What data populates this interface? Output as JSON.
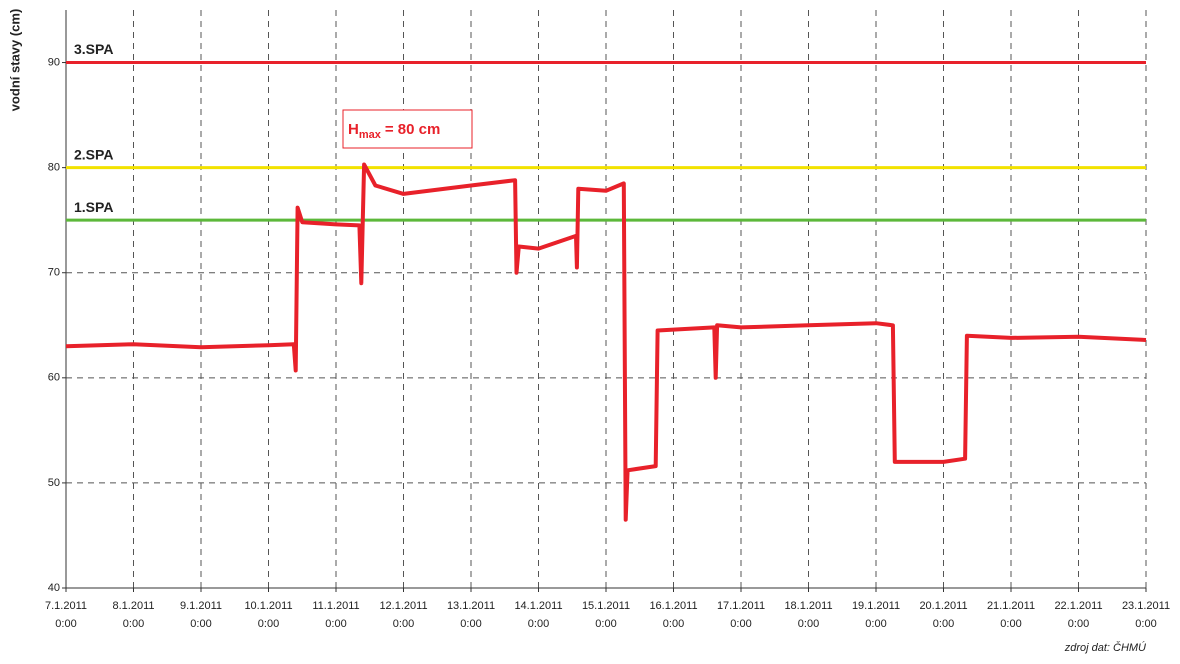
{
  "chart_data": {
    "type": "line",
    "ylabel": "vodní stavy (cm)",
    "source": "zdroj dat: ČHMÚ",
    "annotation": {
      "base": "H",
      "subscript": "max",
      "text": "= 80 cm"
    },
    "ylim": [
      40,
      95
    ],
    "yticks": [
      40,
      50,
      60,
      70,
      80,
      90
    ],
    "xlim": [
      "2011-01-07T00:00",
      "2011-01-23T00:00"
    ],
    "xticks": [
      {
        "value": "2011-01-07T00:00",
        "label": [
          "7.1.2011",
          "0:00"
        ]
      },
      {
        "value": "2011-01-08T00:00",
        "label": [
          "8.1.2011",
          "0:00"
        ]
      },
      {
        "value": "2011-01-09T00:00",
        "label": [
          "9.1.2011",
          "0:00"
        ]
      },
      {
        "value": "2011-01-10T00:00",
        "label": [
          "10.1.2011",
          "0:00"
        ]
      },
      {
        "value": "2011-01-11T00:00",
        "label": [
          "11.1.2011",
          "0:00"
        ]
      },
      {
        "value": "2011-01-12T00:00",
        "label": [
          "12.1.2011",
          "0:00"
        ]
      },
      {
        "value": "2011-01-13T00:00",
        "label": [
          "13.1.2011",
          "0:00"
        ]
      },
      {
        "value": "2011-01-14T00:00",
        "label": [
          "14.1.2011",
          "0:00"
        ]
      },
      {
        "value": "2011-01-15T00:00",
        "label": [
          "15.1.2011",
          "0:00"
        ]
      },
      {
        "value": "2011-01-16T00:00",
        "label": [
          "16.1.2011",
          "0:00"
        ]
      },
      {
        "value": "2011-01-17T00:00",
        "label": [
          "17.1.2011",
          "0:00"
        ]
      },
      {
        "value": "2011-01-18T00:00",
        "label": [
          "18.1.2011",
          "0:00"
        ]
      },
      {
        "value": "2011-01-19T00:00",
        "label": [
          "19.1.2011",
          "0:00"
        ]
      },
      {
        "value": "2011-01-20T00:00",
        "label": [
          "20.1.2011",
          "0:00"
        ]
      },
      {
        "value": "2011-01-21T00:00",
        "label": [
          "21.1.2011",
          "0:00"
        ]
      },
      {
        "value": "2011-01-22T00:00",
        "label": [
          "22.1.2011",
          "0:00"
        ]
      },
      {
        "value": "2011-01-23T00:00",
        "label": [
          "23.1.2011",
          "0:00"
        ]
      }
    ],
    "grid": true,
    "thresholds": [
      {
        "name": "3.SPA",
        "value": 90,
        "color": "#e8212a"
      },
      {
        "name": "2.SPA",
        "value": 80,
        "color": "#f2e200"
      },
      {
        "name": "1.SPA",
        "value": 75,
        "color": "#5cb83a"
      }
    ],
    "x": [
      "2011-01-07T00:00",
      "2011-01-08T00:00",
      "2011-01-09T00:00",
      "2011-01-10T00:00",
      "2011-01-10T09:00",
      "2011-01-10T09:40",
      "2011-01-10T10:20",
      "2011-01-10T12:00",
      "2011-01-11T00:00",
      "2011-01-11T08:20",
      "2011-01-11T09:00",
      "2011-01-11T10:00",
      "2011-01-11T14:00",
      "2011-01-12T00:00",
      "2011-01-13T00:00",
      "2011-01-13T15:40",
      "2011-01-13T16:10",
      "2011-01-13T17:00",
      "2011-01-14T00:00",
      "2011-01-14T13:20",
      "2011-01-14T13:40",
      "2011-01-14T14:10",
      "2011-01-15T00:00",
      "2011-01-15T06:20",
      "2011-01-15T07:00",
      "2011-01-15T07:40",
      "2011-01-15T17:40",
      "2011-01-15T18:20",
      "2011-01-16T14:30",
      "2011-01-16T15:00",
      "2011-01-16T15:30",
      "2011-01-17T00:00",
      "2011-01-18T00:00",
      "2011-01-19T00:00",
      "2011-01-19T06:00",
      "2011-01-19T06:40",
      "2011-01-20T00:00",
      "2011-01-20T07:40",
      "2011-01-20T08:20",
      "2011-01-21T00:00",
      "2011-01-22T00:00",
      "2011-01-23T00:00"
    ],
    "series": [
      {
        "color": "#e8212a",
        "values": [
          63.0,
          63.2,
          62.9,
          63.1,
          63.2,
          60.7,
          76.2,
          74.8,
          74.6,
          74.5,
          69.0,
          80.3,
          78.3,
          77.5,
          78.3,
          78.8,
          70.0,
          72.5,
          72.3,
          73.5,
          70.5,
          78.0,
          77.8,
          78.5,
          46.5,
          51.2,
          51.6,
          64.5,
          64.8,
          60.0,
          65.0,
          64.8,
          65.0,
          65.2,
          65.0,
          52.0,
          52.0,
          52.3,
          64.0,
          63.8,
          63.9,
          63.6
        ]
      }
    ]
  }
}
